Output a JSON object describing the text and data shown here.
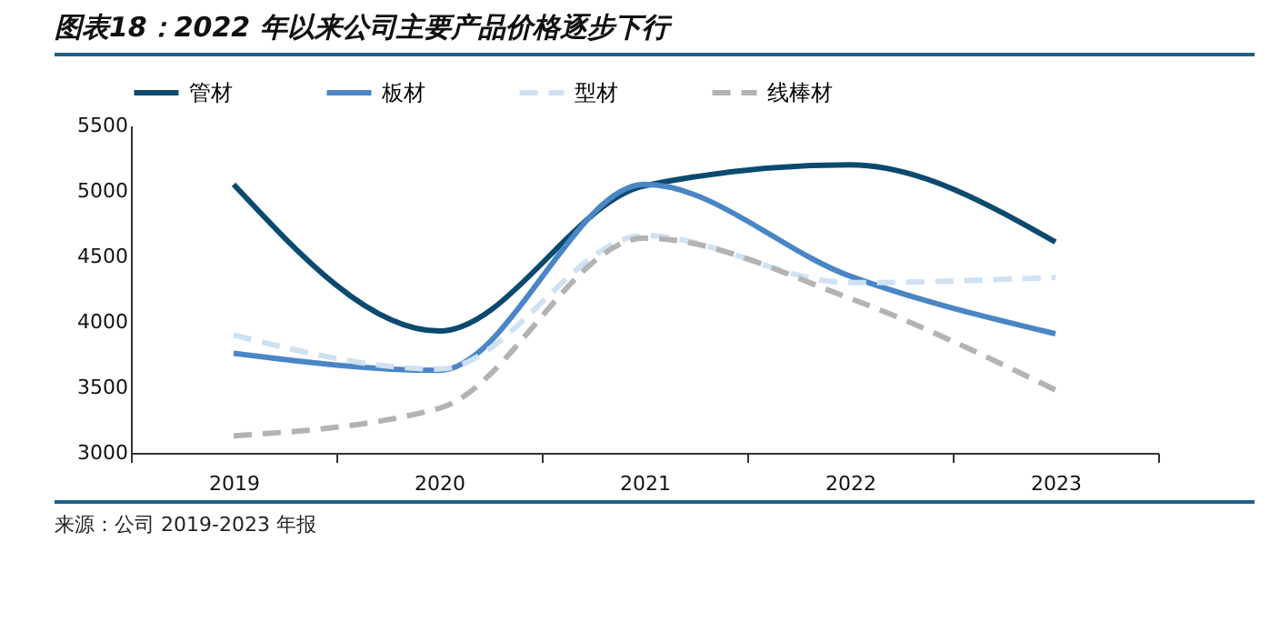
{
  "chart_data": {
    "type": "line",
    "title": "图表18：2022 年以来公司主要产品价格逐步下行",
    "categories": [
      "2019",
      "2020",
      "2021",
      "2022",
      "2023"
    ],
    "series": [
      {
        "name": "管材",
        "color": "#0b4a6f",
        "line_style": "solid",
        "values": [
          5050,
          3930,
          5040,
          5200,
          4610
        ]
      },
      {
        "name": "板材",
        "color": "#4a86c6",
        "line_style": "solid",
        "values": [
          3760,
          3630,
          5050,
          4350,
          3910
        ]
      },
      {
        "name": "型材",
        "color": "#cfe1f2",
        "line_style": "dashed",
        "values": [
          3900,
          3640,
          4660,
          4300,
          4340
        ]
      },
      {
        "name": "线棒材",
        "color": "#b3b3b3",
        "line_style": "dashed",
        "values": [
          3130,
          3340,
          4640,
          4180,
          3480
        ]
      }
    ],
    "ylim": [
      3000,
      5500
    ],
    "yticks": [
      3000,
      3500,
      4000,
      4500,
      5000,
      5500
    ],
    "grid": false,
    "legend": "top",
    "marker": "none",
    "annotations": [
      "来源：公司 2019-2023 年报"
    ]
  }
}
